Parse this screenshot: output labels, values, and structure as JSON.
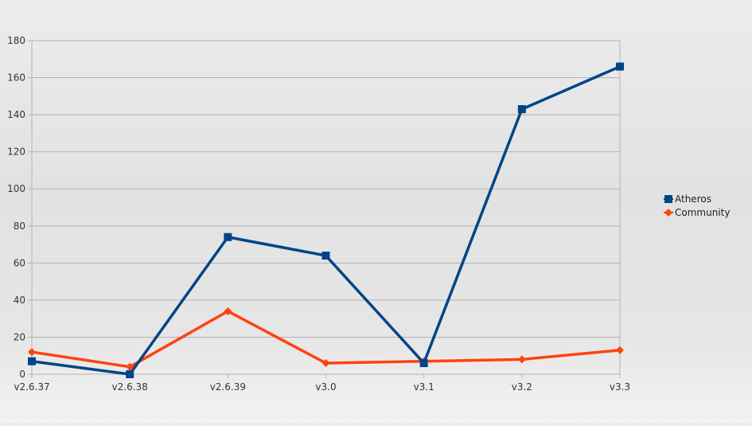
{
  "chart_data": {
    "type": "line",
    "title": "",
    "xlabel": "",
    "ylabel": "",
    "categories": [
      "v2.6.37",
      "v2.6.38",
      "v2.6.39",
      "v3.0",
      "v3.1",
      "v3.2",
      "v3.3"
    ],
    "ylim": [
      0,
      180
    ],
    "yticks": [
      0,
      20,
      40,
      60,
      80,
      100,
      120,
      140,
      160,
      180
    ],
    "grid": true,
    "legend": "right",
    "series": [
      {
        "name": "Atheros",
        "values": [
          7,
          0,
          74,
          64,
          6,
          143,
          166
        ],
        "color": "#004586",
        "marker": "square"
      },
      {
        "name": "Community",
        "values": [
          12,
          4,
          34,
          6,
          7,
          8,
          13
        ],
        "color": "#ff420e",
        "marker": "diamond"
      }
    ]
  }
}
